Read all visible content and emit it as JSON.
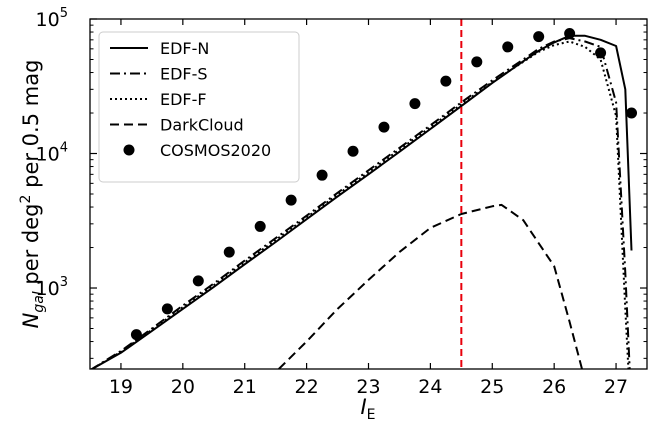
{
  "chart_data": {
    "type": "line",
    "xlabel_main": "I",
    "xlabel_sub": "E",
    "ylabel_parts": {
      "main": "N",
      "sub": "gal",
      "text1": " per deg",
      "sup": "2",
      "text2": " per 0.5 mag"
    },
    "xlim": [
      18.5,
      27.5
    ],
    "ylim": [
      250,
      100000
    ],
    "yscale": "log",
    "x_ticks": [
      "19",
      "20",
      "21",
      "22",
      "23",
      "24",
      "25",
      "26",
      "27"
    ],
    "y_ticks": [
      {
        "value": 1000,
        "base": "10",
        "exp": "3"
      },
      {
        "value": 10000,
        "base": "10",
        "exp": "4"
      },
      {
        "value": 100000,
        "base": "10",
        "exp": "5"
      }
    ],
    "vline": {
      "x": 24.5,
      "color": "#e8000b"
    },
    "legend_position": "top-left",
    "series": [
      {
        "name": "EDF-N",
        "style": "solid",
        "x": [
          18.5,
          19.0,
          19.5,
          20.0,
          20.5,
          21.0,
          21.5,
          22.0,
          22.5,
          23.0,
          23.5,
          24.0,
          24.5,
          25.0,
          25.5,
          25.75,
          26.0,
          26.25,
          26.5,
          26.75,
          27.0,
          27.15,
          27.25
        ],
        "y": [
          245,
          330,
          480,
          700,
          1020,
          1500,
          2200,
          3250,
          4800,
          7000,
          10300,
          15200,
          22500,
          33500,
          48500,
          58000,
          67000,
          75000,
          75000,
          70000,
          63000,
          30000,
          1900
        ]
      },
      {
        "name": "EDF-S",
        "style": "dashdot",
        "x": [
          18.5,
          19.0,
          19.5,
          20.0,
          20.5,
          21.0,
          21.5,
          22.0,
          22.5,
          23.0,
          23.5,
          24.0,
          24.5,
          25.0,
          25.5,
          25.75,
          26.0,
          26.25,
          26.5,
          26.75,
          27.0,
          27.15,
          27.22
        ],
        "y": [
          245,
          340,
          500,
          740,
          1080,
          1600,
          2350,
          3450,
          5100,
          7500,
          11000,
          16200,
          24000,
          35000,
          50000,
          60000,
          68000,
          72000,
          68000,
          62000,
          24000,
          1300,
          250
        ]
      },
      {
        "name": "EDF-F",
        "style": "dotted",
        "x": [
          18.5,
          19.0,
          19.5,
          20.0,
          20.5,
          21.0,
          21.5,
          22.0,
          22.5,
          23.0,
          23.5,
          24.0,
          24.5,
          25.0,
          25.5,
          25.75,
          26.0,
          26.25,
          26.5,
          26.75,
          27.0,
          27.15,
          27.2
        ],
        "y": [
          245,
          335,
          490,
          720,
          1050,
          1550,
          2280,
          3350,
          4950,
          7250,
          10700,
          15700,
          23200,
          34000,
          48000,
          57000,
          64000,
          68000,
          62000,
          50000,
          19000,
          700,
          250
        ]
      },
      {
        "name": "DarkCloud",
        "style": "dashed",
        "x": [
          21.55,
          22.0,
          22.5,
          23.0,
          23.5,
          24.0,
          24.5,
          25.0,
          25.15,
          25.5,
          26.0,
          26.25,
          26.45
        ],
        "y": [
          250,
          400,
          700,
          1150,
          1850,
          2800,
          3550,
          4050,
          4150,
          3200,
          1450,
          560,
          250
        ]
      }
    ],
    "scatter": {
      "name": "COSMOS2020",
      "x": [
        19.25,
        19.75,
        20.25,
        20.75,
        21.25,
        21.75,
        22.25,
        22.75,
        23.25,
        23.75,
        24.25,
        24.75,
        25.25,
        25.75,
        26.25,
        26.75,
        27.25
      ],
      "y": [
        450,
        700,
        1130,
        1850,
        2870,
        4500,
        6900,
        10400,
        15700,
        23500,
        34500,
        48000,
        62000,
        74000,
        78000,
        56000,
        20000
      ]
    }
  }
}
